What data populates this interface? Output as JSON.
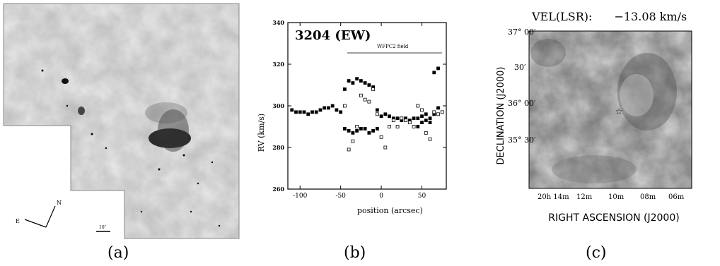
{
  "panel_a": {
    "caption": "(a)",
    "compass": {
      "east": "E",
      "north": "N"
    },
    "scale_bar_label": "10″"
  },
  "panel_b": {
    "caption": "(b)",
    "chart_data": {
      "type": "scatter",
      "title": "3204 (EW)",
      "annotation": "WFPC2 field",
      "xlabel": "position (arcsec)",
      "ylabel": "RV (km/s)",
      "xlim": [
        -115,
        80
      ],
      "ylim": [
        260,
        340
      ],
      "xticks": [
        -100,
        -50,
        0,
        50
      ],
      "yticks": [
        260,
        280,
        300,
        320,
        340
      ],
      "series": [
        {
          "marker": "filled-square",
          "x": [
            -110,
            -105,
            -100,
            -95,
            -90,
            -85,
            -80,
            -75,
            -70,
            -65,
            -60,
            -55,
            -50,
            -45,
            -40,
            -35,
            -30,
            -25,
            -20,
            -15,
            -10,
            -5,
            0,
            5,
            10,
            15,
            20,
            25,
            30,
            35,
            40,
            45,
            50,
            55,
            60,
            65,
            70
          ],
          "y": [
            298,
            297,
            297,
            297,
            296,
            297,
            297,
            298,
            299,
            299,
            300,
            298,
            297,
            308,
            312,
            311,
            313,
            312,
            311,
            310,
            309,
            298,
            295,
            296,
            295,
            294,
            294,
            293,
            294,
            293,
            294,
            294,
            295,
            296,
            294,
            296,
            299
          ]
        },
        {
          "marker": "filled-square",
          "x": [
            -45,
            -40,
            -35,
            -30,
            -25,
            -20,
            -15,
            -10,
            -5,
            45,
            50,
            55,
            60,
            65,
            70
          ],
          "y": [
            289,
            288,
            287,
            288,
            289,
            289,
            287,
            288,
            289,
            290,
            292,
            293,
            292,
            316,
            318
          ]
        },
        {
          "marker": "open-square",
          "x": [
            -45,
            -40,
            -35,
            -30,
            -25,
            -20,
            -15,
            -10,
            -5,
            0,
            5,
            10,
            15,
            20,
            25,
            30,
            35,
            40,
            45,
            50,
            55,
            60,
            65,
            70,
            75
          ],
          "y": [
            300,
            279,
            283,
            290,
            305,
            303,
            302,
            308,
            296,
            285,
            280,
            290,
            293,
            290,
            294,
            293,
            292,
            290,
            300,
            298,
            287,
            284,
            297,
            296,
            297
          ]
        }
      ]
    }
  },
  "panel_c": {
    "caption": "(c)",
    "velocity_label": "VEL(LSR):",
    "velocity_value": "−13.08 km/s",
    "ylabel": "DECLINATION (J2000)",
    "xlabel": "RIGHT ASCENSION (J2000)",
    "dec_ticks": [
      "37° 00′",
      "30′",
      "36° 00′",
      "35° 30′"
    ],
    "ra_ticks": [
      "20h 14m",
      "12m",
      "10m",
      "08m",
      "06m"
    ]
  }
}
